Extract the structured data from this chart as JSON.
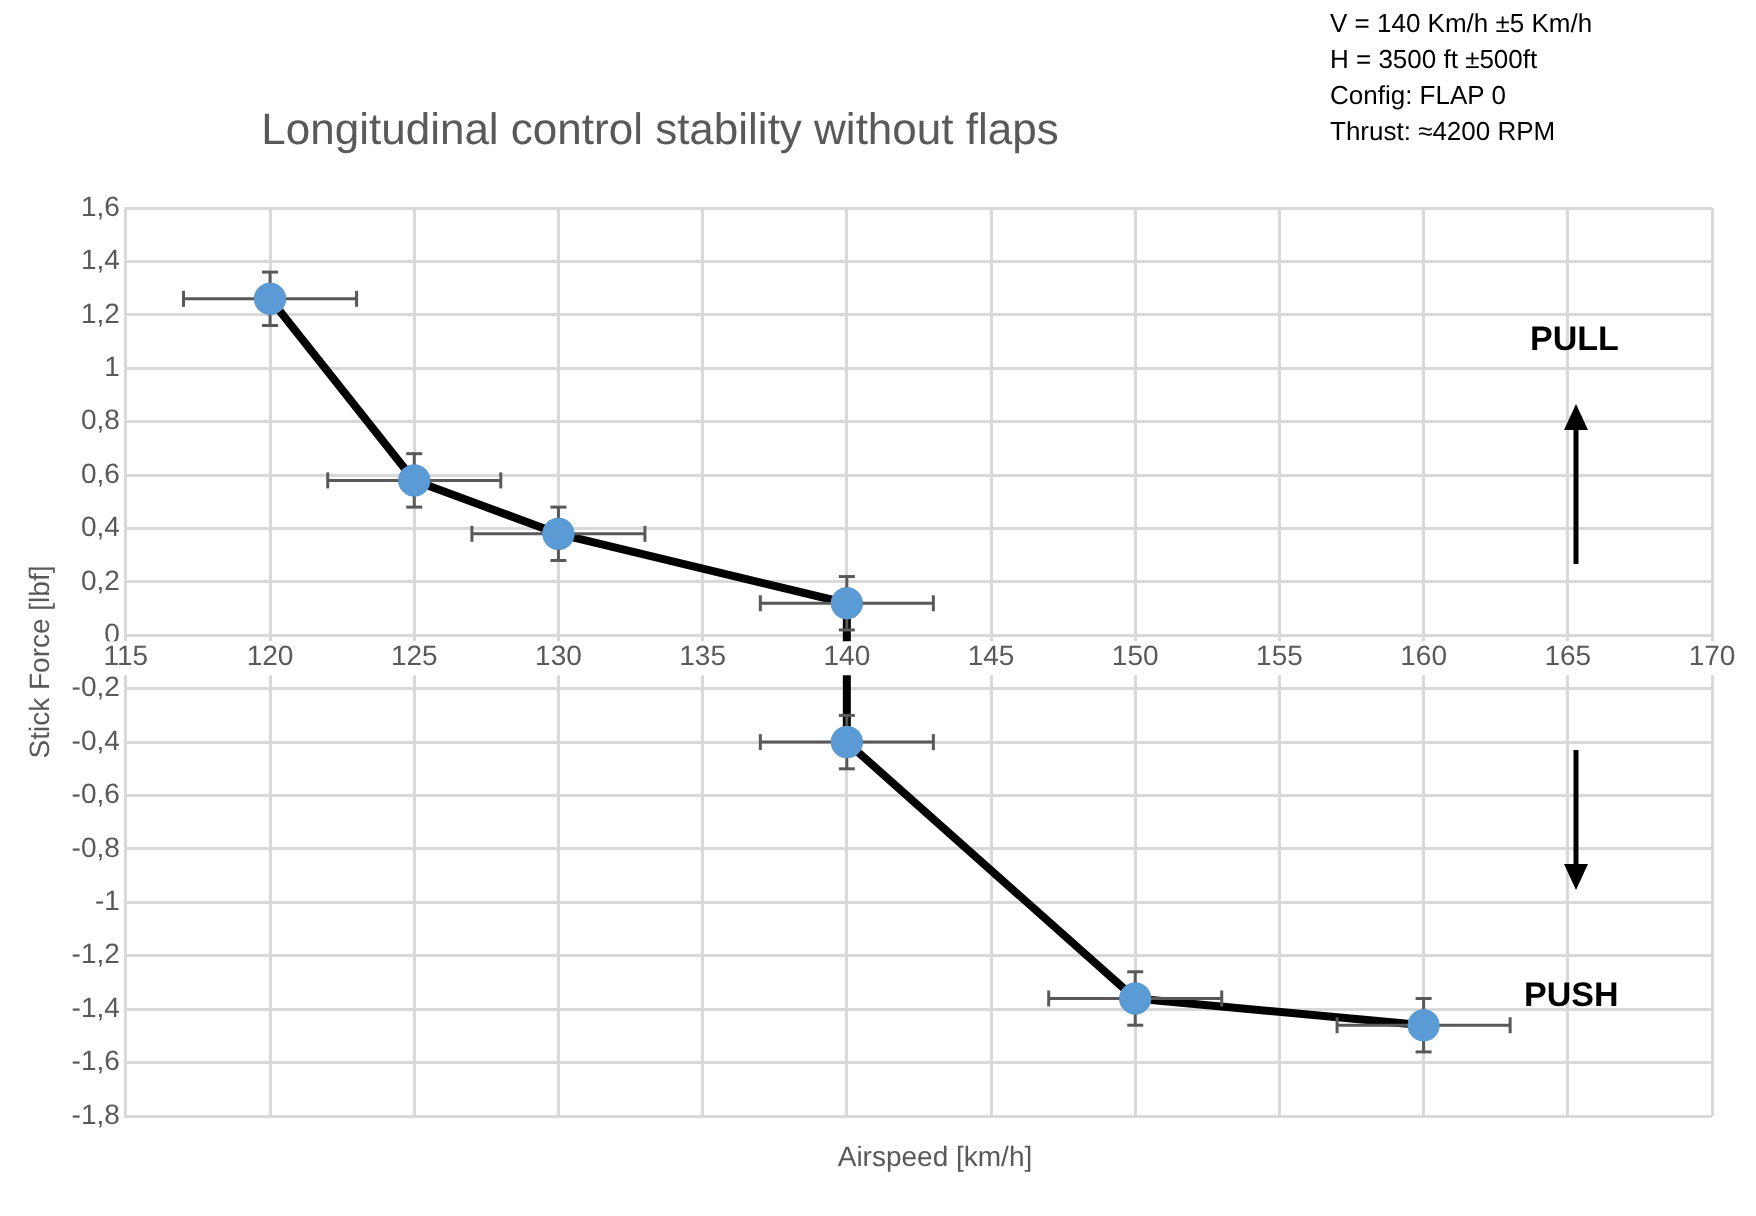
{
  "chart_data": {
    "type": "line",
    "title": "Longitudinal control stability without flaps",
    "xlabel": "Airspeed [km/h]",
    "ylabel": "Stick Force [lbf]",
    "annotations": [
      "V = 140 Km/h ±5 Km/h",
      "H = 3500 ft ±500ft",
      "Config: FLAP 0",
      "Thrust: ≈4200 RPM",
      "PULL",
      "PUSH"
    ],
    "series": [
      {
        "color": "#5b9bd5",
        "x": [
          120,
          125,
          130,
          140,
          140,
          150,
          160
        ],
        "values": [
          1.26,
          0.58,
          0.38,
          0.12,
          -0.4,
          -1.36,
          -1.46
        ],
        "errors": [
          0.1,
          0.1,
          0.1,
          0.1,
          0.1,
          0.1,
          0.1
        ],
        "xerrors": [
          3,
          3,
          3,
          3,
          3,
          3,
          3
        ]
      }
    ],
    "xlim": [
      115,
      170
    ],
    "xticks": [
      115,
      120,
      125,
      130,
      135,
      140,
      145,
      150,
      155,
      160,
      165,
      170
    ],
    "ylim": [
      -1.8,
      1.6
    ],
    "yticks": [
      {
        "value": -1.8,
        "label": "-1,8"
      },
      {
        "value": -1.6,
        "label": "-1,6"
      },
      {
        "value": -1.4,
        "label": "-1,4"
      },
      {
        "value": -1.2,
        "label": "-1,2"
      },
      -1,
      {
        "value": -0.8,
        "label": "-0,8"
      },
      {
        "value": -0.6,
        "label": "-0,6"
      },
      {
        "value": -0.4,
        "label": "-0,4"
      },
      {
        "value": -0.2,
        "label": "-0,2"
      },
      0,
      {
        "value": 0.2,
        "label": "0,2"
      },
      {
        "value": 0.4,
        "label": "0,4"
      },
      {
        "value": 0.6,
        "label": "0,6"
      },
      {
        "value": 0.8,
        "label": "0,8"
      },
      1,
      {
        "value": 1.2,
        "label": "1,2"
      },
      {
        "value": 1.4,
        "label": "1,4"
      },
      {
        "value": 1.6,
        "label": "1,6"
      }
    ],
    "grid": true,
    "marker": "circle",
    "line_style": "solid",
    "legend": false
  }
}
